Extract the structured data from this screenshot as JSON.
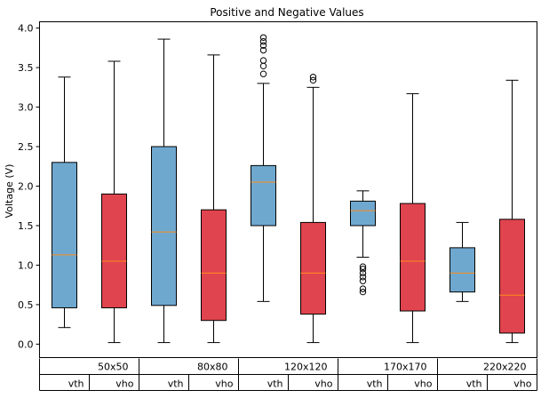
{
  "chart_data": {
    "type": "box",
    "title": "Positive and Negative Values",
    "ylabel": "Voltage (V)",
    "xlabel": "",
    "ylim": [
      -0.17,
      4.08
    ],
    "yticks": [
      "0.0",
      "0.5",
      "1.0",
      "1.5",
      "2.0",
      "2.5",
      "3.0",
      "3.5",
      "4.0"
    ],
    "grid": false,
    "groups": [
      "50x50",
      "80x80",
      "120x120",
      "170x170",
      "220x220"
    ],
    "subgroups": [
      "vth",
      "vho"
    ],
    "colors": {
      "vth": "#6fa8cf",
      "vho": "#e0444e",
      "median": "#ff8c1a"
    },
    "boxes": [
      {
        "group": "50x50",
        "series": "vth",
        "whislo": 0.21,
        "q1": 0.46,
        "med": 1.13,
        "q3": 2.3,
        "whishi": 3.38,
        "fliers": []
      },
      {
        "group": "50x50",
        "series": "vho",
        "whislo": 0.02,
        "q1": 0.46,
        "med": 1.05,
        "q3": 1.9,
        "whishi": 3.58,
        "fliers": []
      },
      {
        "group": "80x80",
        "series": "vth",
        "whislo": 0.02,
        "q1": 0.49,
        "med": 1.42,
        "q3": 2.5,
        "whishi": 3.86,
        "fliers": []
      },
      {
        "group": "80x80",
        "series": "vho",
        "whislo": 0.02,
        "q1": 0.3,
        "med": 0.9,
        "q3": 1.7,
        "whishi": 3.66,
        "fliers": []
      },
      {
        "group": "120x120",
        "series": "vth",
        "whislo": 0.54,
        "q1": 1.5,
        "med": 2.05,
        "q3": 2.26,
        "whishi": 3.3,
        "fliers": [
          3.42,
          3.52,
          3.59,
          3.72,
          3.78,
          3.83,
          3.88
        ]
      },
      {
        "group": "120x120",
        "series": "vho",
        "whislo": 0.02,
        "q1": 0.38,
        "med": 0.9,
        "q3": 1.54,
        "whishi": 3.25,
        "fliers": [
          3.34,
          3.38
        ]
      },
      {
        "group": "170x170",
        "series": "vth",
        "whislo": 1.1,
        "q1": 1.5,
        "med": 1.69,
        "q3": 1.81,
        "whishi": 1.94,
        "fliers": [
          0.66,
          0.7,
          0.8,
          0.85,
          0.9,
          0.95,
          0.98
        ]
      },
      {
        "group": "170x170",
        "series": "vho",
        "whislo": 0.02,
        "q1": 0.42,
        "med": 1.05,
        "q3": 1.78,
        "whishi": 3.17,
        "fliers": []
      },
      {
        "group": "220x220",
        "series": "vth",
        "whislo": 0.54,
        "q1": 0.66,
        "med": 0.9,
        "q3": 1.22,
        "whishi": 1.54,
        "fliers": []
      },
      {
        "group": "220x220",
        "series": "vho",
        "whislo": 0.02,
        "q1": 0.14,
        "med": 0.62,
        "q3": 1.58,
        "whishi": 3.34,
        "fliers": []
      }
    ]
  }
}
